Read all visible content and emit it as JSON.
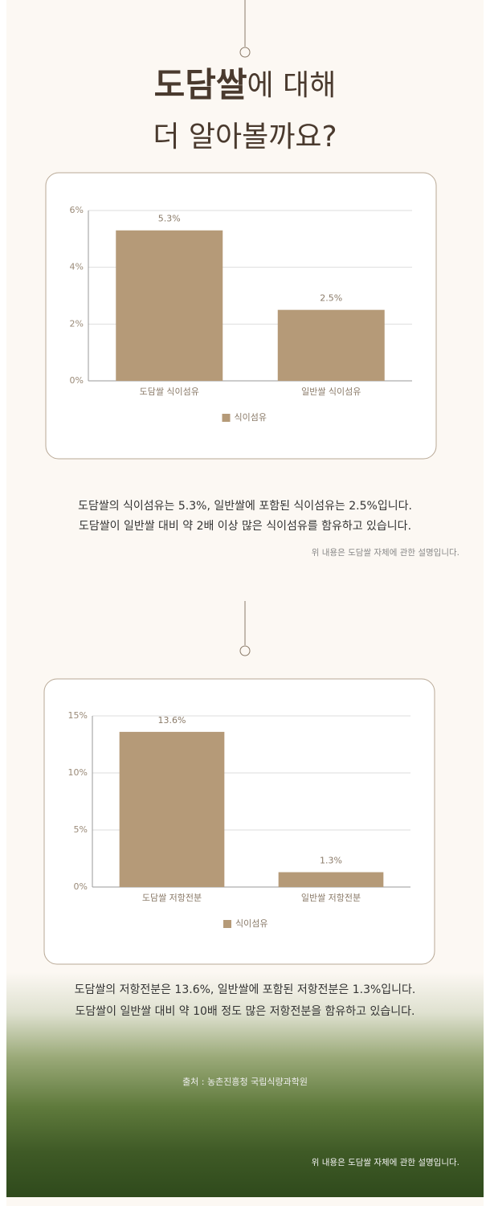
{
  "header": {
    "title_line1": [
      "도담쌀",
      "에 대해"
    ],
    "title_line2": "더 알아볼까요?"
  },
  "chart_data": [
    {
      "type": "bar",
      "categories": [
        "도담쌀 식이섬유",
        "일반쌀 식이섬유"
      ],
      "series": [
        {
          "name": "식이섬유",
          "color": "#b59a78",
          "values": [
            5.3,
            2.5
          ],
          "value_labels": [
            "5.3%",
            "2.5%"
          ]
        }
      ],
      "ylim": [
        0,
        6
      ],
      "yticks": [
        {
          "value": 0,
          "label": "0%"
        },
        {
          "value": 2,
          "label": "2%"
        },
        {
          "value": 4,
          "label": "4%"
        },
        {
          "value": 6,
          "label": "6%"
        }
      ],
      "grid": true,
      "legend": "bottom"
    },
    {
      "type": "bar",
      "categories": [
        "도담쌀 저항전분",
        "일반쌀 저항전분"
      ],
      "series": [
        {
          "name": "식이섬유",
          "color": "#b59a78",
          "values": [
            13.6,
            1.3
          ],
          "value_labels": [
            "13.6%",
            "1.3%"
          ]
        }
      ],
      "ylim": [
        0,
        15
      ],
      "yticks": [
        {
          "value": 0,
          "label": "0%"
        },
        {
          "value": 5,
          "label": "5%"
        },
        {
          "value": 10,
          "label": "10%"
        },
        {
          "value": 15,
          "label": "15%"
        }
      ],
      "grid": true,
      "legend": "bottom"
    }
  ],
  "sections": [
    {
      "lines": [
        "도담쌀의 식이섬유는 5.3%, 일반쌀에 포함된 식이섬유는 2.5%입니다.",
        "도담쌀이 일반쌀 대비 약 2배 이상 많은 식이섬유를 함유하고 있습니다."
      ],
      "note": "위 내용은 도담쌀 자체에 관한 설명입니다."
    },
    {
      "lines": [
        "도담쌀의 저항전분은 13.6%, 일반쌀에 포함된 저항전분은 1.3%입니다.",
        "도담쌀이 일반쌀 대비 약 10배 정도 많은 저항전분을 함유하고 있습니다."
      ],
      "source": "출처 : 농촌진흥청 국립식량과학원",
      "note": "위 내용은 도담쌀 자체에 관한 설명입니다."
    }
  ]
}
